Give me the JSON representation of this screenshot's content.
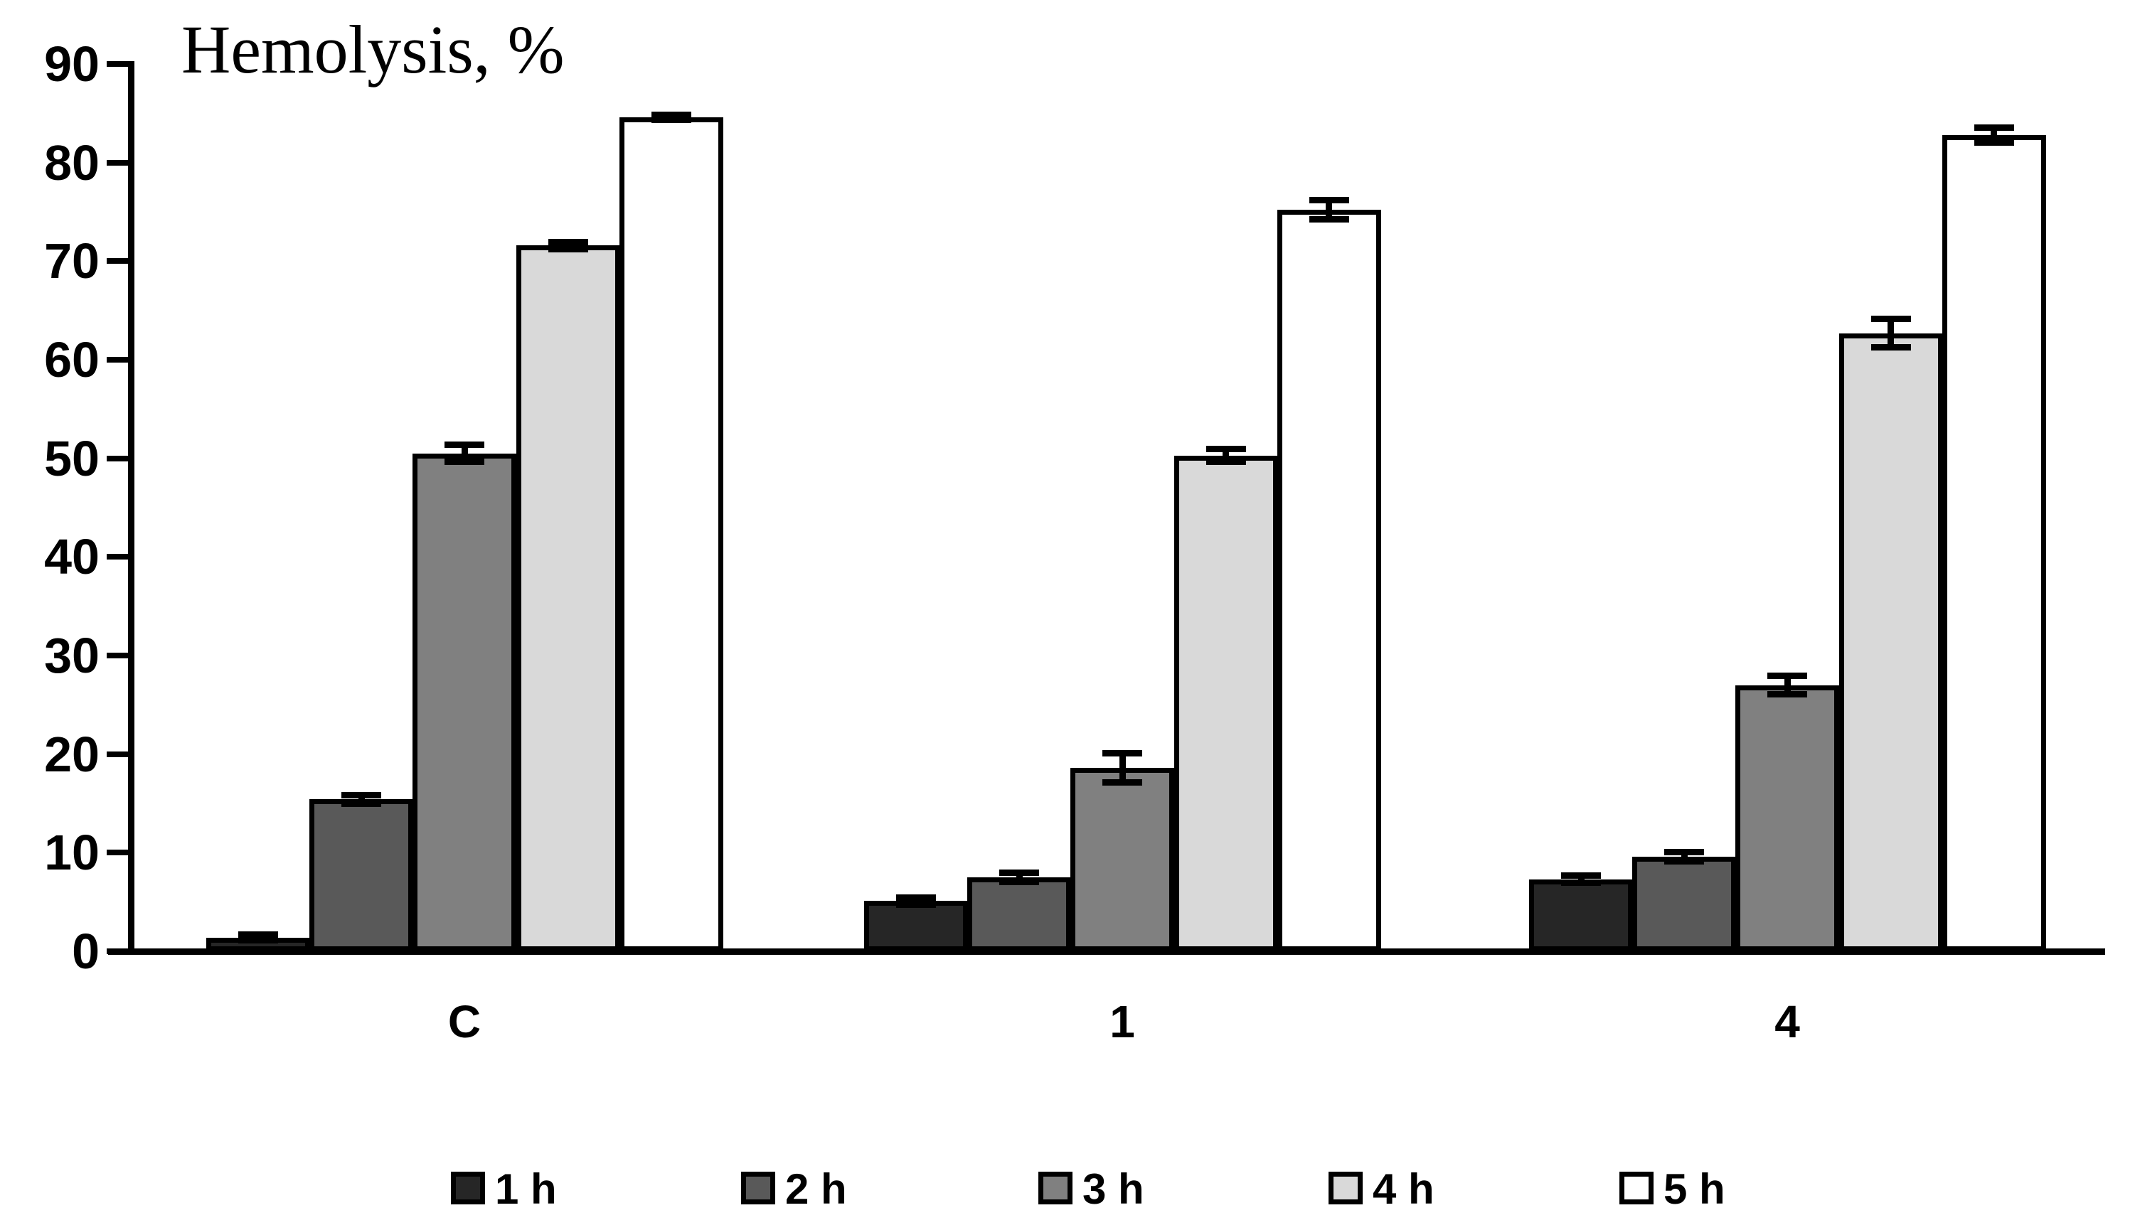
{
  "chart_data": {
    "type": "bar",
    "title": "Hemolysis, %",
    "ylabel": "",
    "xlabel": "",
    "ylim": [
      0,
      90
    ],
    "yticks": [
      0,
      10,
      20,
      30,
      40,
      50,
      60,
      70,
      80,
      90
    ],
    "grid": false,
    "legend_position": "bottom",
    "categories": [
      "C",
      "1",
      "4"
    ],
    "series": [
      {
        "name": "1 h",
        "color": "#262626",
        "values": [
          1.4,
          5.1,
          7.3
        ],
        "errors": [
          0.3,
          0.4,
          0.4
        ]
      },
      {
        "name": "2 h",
        "color": "#595959",
        "values": [
          15.4,
          7.5,
          9.6
        ],
        "errors": [
          0.5,
          0.5,
          0.5
        ]
      },
      {
        "name": "3 h",
        "color": "#808080",
        "values": [
          50.5,
          18.6,
          27.0
        ],
        "errors": [
          0.9,
          1.5,
          1.0
        ]
      },
      {
        "name": "4 h",
        "color": "#D9D9D9",
        "values": [
          71.6,
          50.3,
          62.7
        ],
        "errors": [
          0.4,
          0.7,
          1.5
        ]
      },
      {
        "name": "5 h",
        "color": "#FFFFFF",
        "values": [
          84.6,
          75.2,
          82.8
        ],
        "errors": [
          0.3,
          1.0,
          0.8
        ]
      }
    ],
    "axis_color": "#000000",
    "error_bar_color": "#000000"
  }
}
